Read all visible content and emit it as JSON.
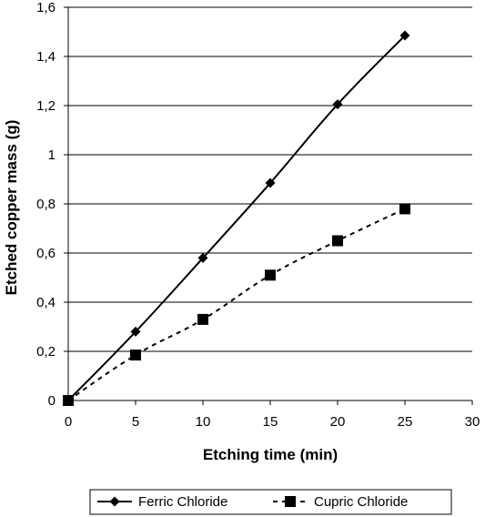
{
  "chart_data": {
    "type": "line",
    "xlabel": "Etching time (min)",
    "ylabel": "Etched copper mass (g)",
    "xlim": [
      0,
      30
    ],
    "ylim": [
      0,
      1.6
    ],
    "x_ticks": [
      "0",
      "5",
      "10",
      "15",
      "20",
      "25",
      "30"
    ],
    "y_ticks": [
      "0",
      "0,2",
      "0,4",
      "0,6",
      "0,8",
      "1",
      "1,2",
      "1,4",
      "1,6"
    ],
    "grid": "horizontal",
    "legend_position": "bottom",
    "series": [
      {
        "name": "Ferric Chloride",
        "line_style": "solid",
        "marker": "diamond",
        "color": "#000000",
        "x": [
          0,
          5,
          10,
          15,
          20,
          25
        ],
        "values": [
          0,
          0.28,
          0.58,
          0.885,
          1.205,
          1.485
        ]
      },
      {
        "name": "Cupric Chloride",
        "line_style": "dashed",
        "marker": "square",
        "color": "#000000",
        "x": [
          0,
          5,
          10,
          15,
          20,
          25
        ],
        "values": [
          0,
          0.185,
          0.33,
          0.51,
          0.65,
          0.78
        ]
      }
    ]
  }
}
